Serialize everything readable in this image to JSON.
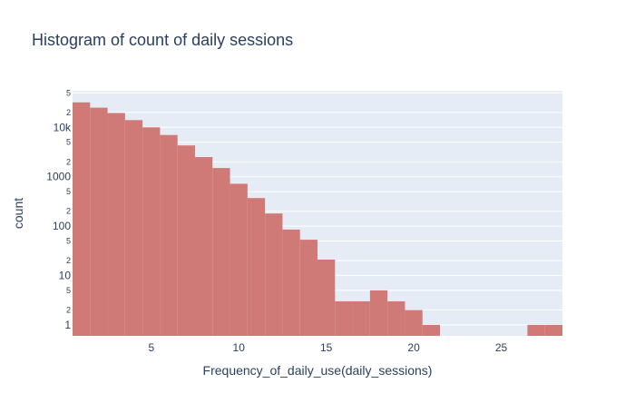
{
  "chart_data": {
    "type": "bar",
    "title": "Histogram of count of daily sessions",
    "xlabel": "Frequency_of_daily_use(daily_sessions)",
    "ylabel": "count",
    "y_scale": "log",
    "xlim": [
      0.5,
      28.5
    ],
    "ylim": [
      0.6,
      55000
    ],
    "bin_width": 1,
    "x_ticks": [
      5,
      10,
      15,
      20,
      25
    ],
    "x_tick_labels": [
      "5",
      "10",
      "15",
      "20",
      "25"
    ],
    "y_major_ticks": [
      1,
      10,
      100,
      1000,
      10000
    ],
    "y_major_tick_labels": [
      "1",
      "10",
      "100",
      "1000",
      "10k"
    ],
    "y_minor_ticks": [
      2,
      5,
      20,
      50,
      200,
      500,
      2000,
      5000,
      20000,
      50000
    ],
    "y_minor_tick_labels": [
      "2",
      "5",
      "2",
      "5",
      "2",
      "5",
      "2",
      "5",
      "2",
      "5"
    ],
    "bins": [
      1,
      2,
      3,
      4,
      5,
      6,
      7,
      8,
      9,
      10,
      11,
      12,
      13,
      14,
      15,
      16,
      17,
      18,
      19,
      20,
      21,
      22,
      23,
      24,
      25,
      26,
      27,
      28
    ],
    "values": [
      32000,
      25000,
      19500,
      14000,
      10000,
      7000,
      4300,
      2500,
      1500,
      720,
      370,
      180,
      85,
      53,
      21,
      3,
      3,
      5,
      3,
      2,
      1,
      0,
      0,
      0,
      0,
      0,
      1,
      1
    ],
    "bar_color": "#d07a78",
    "plot_bg": "#e5ecf6",
    "grid": true,
    "legend": "none"
  }
}
